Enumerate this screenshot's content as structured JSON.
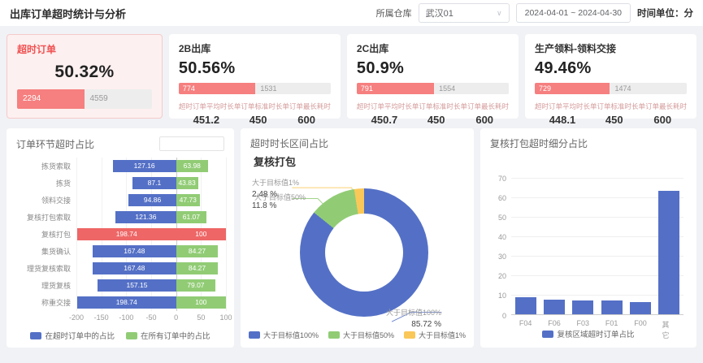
{
  "header": {
    "title": "出库订单超时统计与分析",
    "warehouse_label": "所属仓库",
    "warehouse_value": "武汉01",
    "date_range": "2024-04-01  ~  2024-04-30",
    "time_unit": "时间单位：分"
  },
  "kpis": [
    {
      "title": "超时订单",
      "percent": "50.32%",
      "percent_value": 50.32,
      "overtime": "2294",
      "total": "4559"
    },
    {
      "title": "2B出库",
      "percent": "50.56%",
      "percent_value": 50.56,
      "overtime": "774",
      "total": "1531",
      "stats": [
        {
          "label": "超时订单平均时长",
          "value": "451.2"
        },
        {
          "label": "单订单标准时长",
          "value": "450"
        },
        {
          "label": "单订单最长耗时",
          "value": "600"
        }
      ]
    },
    {
      "title": "2C出库",
      "percent": "50.9%",
      "percent_value": 50.9,
      "overtime": "791",
      "total": "1554",
      "stats": [
        {
          "label": "超时订单平均时长",
          "value": "450.7"
        },
        {
          "label": "单订单标准时长",
          "value": "450"
        },
        {
          "label": "单订单最长耗时",
          "value": "600"
        }
      ]
    },
    {
      "title": "生产领料-领料交接",
      "percent": "49.46%",
      "percent_value": 49.46,
      "overtime": "729",
      "total": "1474",
      "stats": [
        {
          "label": "超时订单平均时长",
          "value": "448.1"
        },
        {
          "label": "单订单标准时长",
          "value": "450"
        },
        {
          "label": "单订单最长耗时",
          "value": "600"
        }
      ]
    }
  ],
  "colors": {
    "blue": "#5470c6",
    "green": "#91cc75",
    "yellow": "#fac858",
    "red": "#ee6666",
    "kpi_red": "#f67f7f"
  },
  "chart_data": [
    {
      "type": "bar",
      "orientation": "horizontal-diverging",
      "title": "订单环节超时占比",
      "categories": [
        "拣货索取",
        "拣货",
        "领料交接",
        "复核打包索取",
        "复核打包",
        "集货确认",
        "理货复核索取",
        "理货复核",
        "称重交接"
      ],
      "series": [
        {
          "name": "在超时订单中的占比",
          "color": "#5470c6",
          "side": "left",
          "values": [
            127.16,
            87.1,
            94.86,
            121.36,
            198.74,
            167.48,
            167.48,
            157.15,
            198.74
          ]
        },
        {
          "name": "在所有订单中的占比",
          "color": "#91cc75",
          "side": "right",
          "values": [
            63.98,
            43.83,
            47.73,
            61.07,
            100,
            84.27,
            84.27,
            79.07,
            100
          ]
        }
      ],
      "highlight_index": 4,
      "highlight_color": "#ee6666",
      "xlim": [
        -200,
        100
      ],
      "xticks": [
        -200,
        -150,
        -100,
        -50,
        0,
        50,
        100
      ],
      "legend_position": "bottom"
    },
    {
      "type": "pie",
      "title": "超时时长区间占比",
      "subtitle": "复核打包",
      "slices": [
        {
          "name": "大于目标值100%",
          "value": 85.72,
          "value_label": "85.72 %",
          "color": "#5470c6"
        },
        {
          "name": "大于目标值50%",
          "value": 11.8,
          "value_label": "11.8 %",
          "color": "#91cc75"
        },
        {
          "name": "大于目标值1%",
          "value": 2.48,
          "value_label": "2.48 %",
          "color": "#fac858"
        }
      ],
      "legend_position": "bottom"
    },
    {
      "type": "bar",
      "title": "复核打包超时细分占比",
      "categories": [
        "F04",
        "F06",
        "F03",
        "F01",
        "F00",
        "其它"
      ],
      "values": [
        8.8,
        7.6,
        7.1,
        6.9,
        6.4,
        63.4
      ],
      "series_name": "复核区域超时订单占比",
      "color": "#5470c6",
      "ylim": [
        0,
        70
      ],
      "yticks": [
        0,
        10,
        20,
        30,
        40,
        50,
        60,
        70
      ],
      "legend_position": "bottom"
    }
  ]
}
